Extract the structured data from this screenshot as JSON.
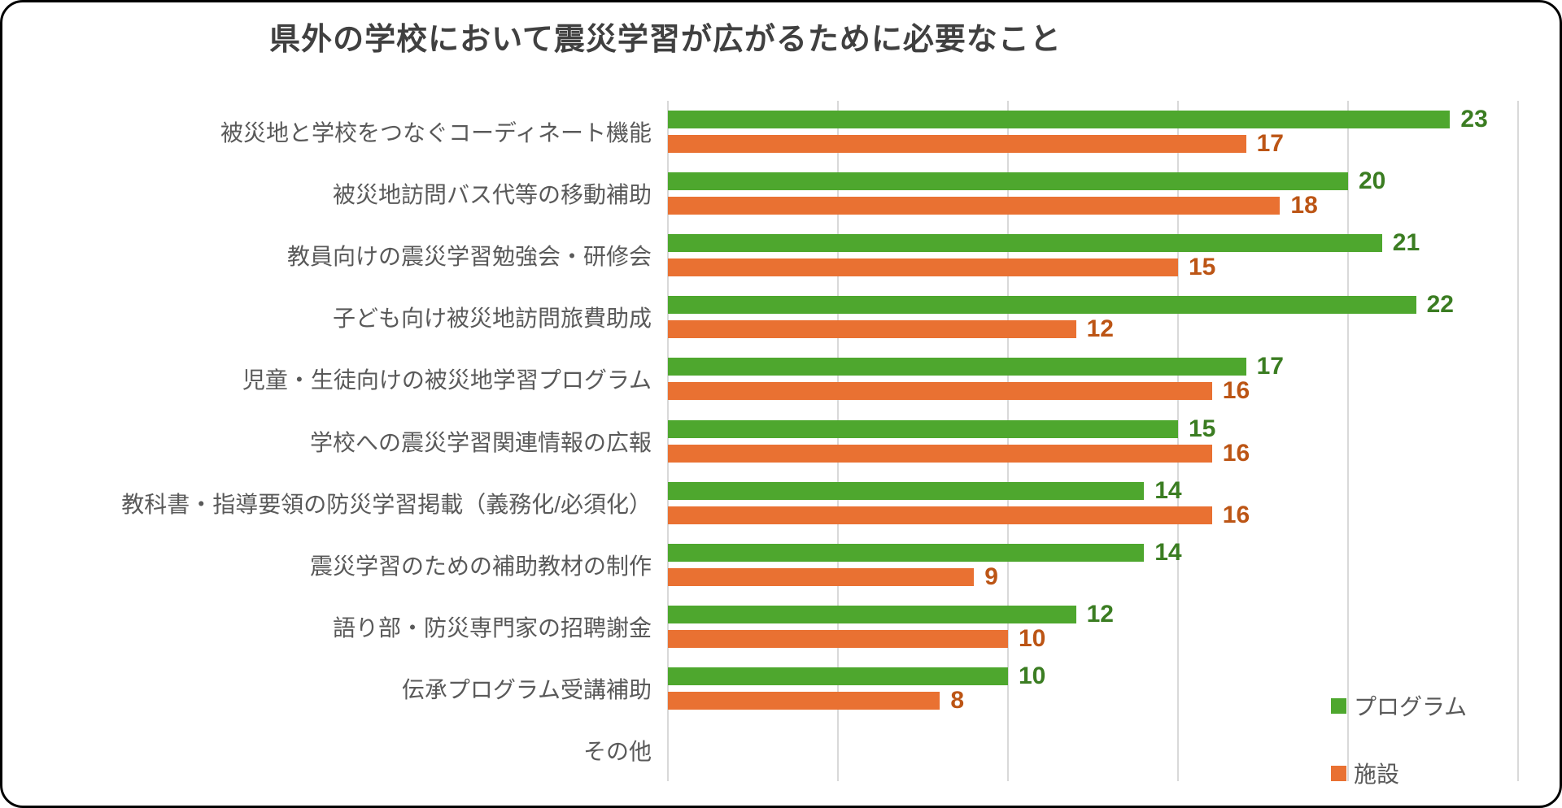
{
  "chart_data": {
    "type": "bar",
    "orientation": "horizontal",
    "title": "県外の学校において震災学習が広がるために必要なこと",
    "categories": [
      "被災地と学校をつなぐコーディネート機能",
      "被災地訪問バス代等の移動補助",
      "教員向けの震災学習勉強会・研修会",
      "子ども向け被災地訪問旅費助成",
      "児童・生徒向けの被災地学習プログラム",
      "学校への震災学習関連情報の広報",
      "教科書・指導要領の防災学習掲載（義務化/必須化）",
      "震災学習のための補助教材の制作",
      "語り部・防災専門家の招聘謝金",
      "伝承プログラム受講補助",
      "その他"
    ],
    "series": [
      {
        "name": "プログラム",
        "color": "#4EA72E",
        "label_color": "#3B7D22",
        "values": [
          23,
          20,
          21,
          22,
          17,
          15,
          14,
          14,
          12,
          10,
          0
        ]
      },
      {
        "name": "施設",
        "color": "#E97132",
        "label_color": "#BC5515",
        "values": [
          17,
          18,
          15,
          12,
          16,
          16,
          16,
          9,
          10,
          8,
          0
        ]
      }
    ],
    "xlim": [
      0,
      25
    ],
    "gridline_interval": 5,
    "grid": "vertical-only",
    "gridline_color": "#D9D9D9",
    "axis_tick_labels_visible": false,
    "category_label_color": "#595959",
    "title_color": "#404040",
    "legend_position": "bottom-right"
  }
}
